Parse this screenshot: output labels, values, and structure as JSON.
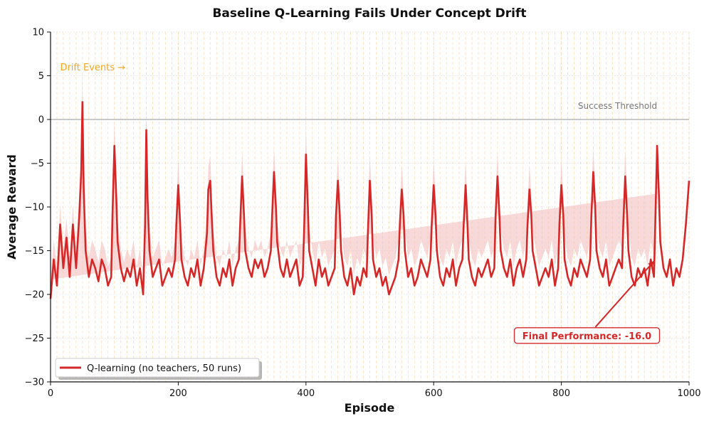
{
  "chart_data": {
    "type": "line",
    "title": "Baseline Q-Learning Fails Under Concept Drift",
    "xlabel": "Episode",
    "ylabel": "Average Reward",
    "xlim": [
      0,
      1000
    ],
    "ylim": [
      -30,
      10
    ],
    "xticks": [
      0,
      200,
      400,
      600,
      800,
      1000
    ],
    "yticks": [
      -30,
      -25,
      -20,
      -15,
      -10,
      -5,
      0,
      5,
      10
    ],
    "grid": true,
    "legend_placement": "bottom-left",
    "series": [
      {
        "name": "Q-learning (no teachers, 50 runs)",
        "color": "#d62728",
        "band_color": "#f3b9b9",
        "x": [
          0,
          5,
          10,
          15,
          20,
          25,
          30,
          35,
          40,
          45,
          48,
          50,
          52,
          55,
          60,
          65,
          70,
          75,
          80,
          85,
          90,
          95,
          97,
          100,
          103,
          105,
          110,
          115,
          120,
          125,
          130,
          135,
          140,
          145,
          148,
          150,
          152,
          155,
          160,
          165,
          170,
          175,
          180,
          185,
          190,
          195,
          197,
          200,
          203,
          205,
          210,
          215,
          220,
          225,
          230,
          235,
          240,
          245,
          247,
          250,
          253,
          255,
          260,
          265,
          270,
          275,
          280,
          285,
          290,
          295,
          297,
          300,
          303,
          305,
          310,
          315,
          320,
          325,
          330,
          335,
          340,
          345,
          347,
          350,
          353,
          355,
          360,
          365,
          370,
          375,
          380,
          385,
          390,
          395,
          397,
          400,
          403,
          405,
          410,
          415,
          420,
          425,
          430,
          435,
          440,
          445,
          447,
          450,
          453,
          455,
          460,
          465,
          470,
          475,
          480,
          485,
          490,
          495,
          497,
          500,
          503,
          505,
          510,
          515,
          520,
          525,
          530,
          535,
          540,
          545,
          547,
          550,
          553,
          555,
          560,
          565,
          570,
          575,
          580,
          585,
          590,
          595,
          597,
          600,
          603,
          605,
          610,
          615,
          620,
          625,
          630,
          635,
          640,
          645,
          647,
          650,
          653,
          655,
          660,
          665,
          670,
          675,
          680,
          685,
          690,
          695,
          697,
          700,
          703,
          705,
          710,
          715,
          720,
          725,
          730,
          735,
          740,
          745,
          747,
          750,
          753,
          755,
          760,
          765,
          770,
          775,
          780,
          785,
          790,
          795,
          797,
          800,
          803,
          805,
          810,
          815,
          820,
          825,
          830,
          835,
          840,
          845,
          847,
          850,
          853,
          855,
          860,
          865,
          870,
          875,
          880,
          885,
          890,
          895,
          897,
          900,
          903,
          905,
          910,
          915,
          920,
          925,
          930,
          935,
          940,
          945,
          947,
          950,
          953,
          955,
          960,
          965,
          970,
          975,
          980,
          985,
          990,
          995,
          1000
        ],
        "values": [
          -20.5,
          -16,
          -19,
          -12,
          -17,
          -13.5,
          -18,
          -12,
          -17,
          -11,
          -6,
          2,
          -8,
          -15,
          -18,
          -16,
          -17,
          -18.5,
          -16,
          -17,
          -19,
          -18,
          -11,
          -3,
          -9,
          -14,
          -17,
          -18.5,
          -17,
          -18,
          -16,
          -19,
          -17,
          -20,
          -12,
          -1.2,
          -9,
          -15,
          -18,
          -17,
          -16,
          -19,
          -18,
          -17,
          -18,
          -16,
          -12,
          -7.5,
          -12,
          -16,
          -18,
          -19,
          -17,
          -18,
          -16,
          -19,
          -17,
          -13,
          -8,
          -7,
          -12,
          -15,
          -18,
          -19,
          -17,
          -18,
          -16,
          -19,
          -17,
          -16,
          -12,
          -6.5,
          -11,
          -15,
          -17,
          -18,
          -16,
          -17,
          -16,
          -18,
          -17,
          -15,
          -11,
          -6,
          -10,
          -14,
          -17,
          -18,
          -16,
          -18,
          -17,
          -16,
          -19,
          -18,
          -13,
          -4,
          -10,
          -15,
          -17,
          -19,
          -16,
          -18,
          -17,
          -19,
          -18,
          -17,
          -11,
          -7,
          -11,
          -15,
          -18,
          -19,
          -17,
          -20,
          -18,
          -19,
          -17,
          -18,
          -13,
          -7,
          -11,
          -16,
          -18,
          -17,
          -19,
          -18,
          -20,
          -19,
          -18,
          -16,
          -12,
          -8,
          -11,
          -15,
          -18,
          -17,
          -19,
          -18,
          -16,
          -17,
          -18,
          -16,
          -12,
          -7.5,
          -11,
          -15,
          -18,
          -19,
          -17,
          -18,
          -16,
          -19,
          -17,
          -16,
          -12,
          -7.5,
          -12,
          -16,
          -18,
          -19,
          -17,
          -18,
          -17,
          -16,
          -18,
          -17,
          -11,
          -6.5,
          -11,
          -15,
          -17,
          -18,
          -16,
          -19,
          -17,
          -16,
          -18,
          -16,
          -12,
          -8,
          -11,
          -15,
          -17,
          -19,
          -18,
          -17,
          -18,
          -16,
          -19,
          -17,
          -12,
          -7.5,
          -11,
          -16,
          -18,
          -19,
          -17,
          -18,
          -16,
          -17,
          -18,
          -16,
          -11,
          -6,
          -10,
          -15,
          -17,
          -18,
          -16,
          -19,
          -18,
          -17,
          -16,
          -17,
          -12,
          -6.5,
          -11,
          -15,
          -18,
          -19,
          -17,
          -18,
          -17,
          -19,
          -16,
          -18,
          -12,
          -3,
          -9,
          -14,
          -17,
          -18,
          -16,
          -19,
          -17,
          -18,
          -16,
          -12,
          -7
        ],
        "band": [
          2.2,
          2.2,
          2.2,
          2.2,
          2.2,
          2.2,
          2.2,
          2.2,
          2.2,
          2.8,
          3,
          3,
          3,
          2.4,
          2.2,
          2.2,
          2.2,
          2.2,
          2.2,
          2.2,
          2.2,
          2.2,
          2.6,
          2.8,
          2.6,
          2.4,
          2.2,
          2.2,
          2.2,
          2.2,
          2.2,
          2.2,
          2.2,
          2.2,
          2.6,
          3,
          2.6,
          2.4,
          2.2,
          2.2,
          2.2,
          2.2,
          2.2,
          2.2,
          2.2,
          2.2,
          2.6,
          2.8,
          2.6,
          2.4,
          2.2,
          2.2,
          2.2,
          2.2,
          2.2,
          2.2,
          2.2,
          2.2,
          2.6,
          2.8,
          2.6,
          2.4,
          2.2,
          2.2,
          2.2,
          2.2,
          2.2,
          2.2,
          2.2,
          2.2,
          2.6,
          2.8,
          2.6,
          2.4,
          2.2,
          2.2,
          2.2,
          2.2,
          2.2,
          2.2,
          2.2,
          2.2,
          2.6,
          2.8,
          2.6,
          2.4,
          2.2,
          2.2,
          2.2,
          2.2,
          2.2,
          2.2,
          2.2,
          2.2,
          2.6,
          2.8,
          2.6,
          2.4,
          2.2,
          2.2,
          2.2,
          2.2,
          2.2,
          2.2,
          2.2,
          2.2,
          2.6,
          2.8,
          2.6,
          2.4,
          2.2,
          2.2,
          2.2,
          2.2,
          2.2,
          2.2,
          2.2,
          2.2,
          2.6,
          2.8,
          2.6,
          2.4,
          2.2,
          2.2,
          2.2,
          2.2,
          2.2,
          2.2,
          2.2,
          2.2,
          2.6,
          2.8,
          2.6,
          2.4,
          2.2,
          2.2,
          2.2,
          2.2,
          2.2,
          2.2,
          2.2,
          2.2,
          2.6,
          2.8,
          2.6,
          2.4,
          2.2,
          2.2,
          2.2,
          2.2,
          2.2,
          2.2,
          2.2,
          2.2,
          2.6,
          2.8,
          2.6,
          2.4,
          2.2,
          2.2,
          2.2,
          2.2,
          2.2,
          2.2,
          2.2,
          2.2,
          2.6,
          2.8,
          2.6,
          2.4,
          2.2,
          2.2,
          2.2,
          2.2,
          2.2,
          2.2,
          2.2,
          2.2,
          2.6,
          2.8,
          2.6,
          2.4,
          2.2,
          2.2,
          2.2,
          2.2,
          2.2,
          2.2,
          2.2,
          2.2,
          2.6,
          2.8,
          2.6,
          2.4,
          2.2,
          2.2,
          2.2,
          2.2,
          2.2,
          2.2,
          2.2,
          2.2,
          2.6,
          2.8,
          2.6,
          2.4,
          2.2,
          2.2,
          2.2,
          2.2,
          2.2,
          2.2,
          2.2,
          2.2,
          2.6,
          3,
          2.6,
          2.4,
          2.2,
          2.2,
          2.2,
          2.2,
          2.2,
          2.2,
          2.2,
          2.4,
          3.5
        ]
      }
    ],
    "drift_events_label": "Drift Events →",
    "drift_color": "#f5a623",
    "drift_interval": 10,
    "threshold": {
      "value": 0,
      "label": "Success Threshold",
      "color": "#aaaaaa"
    },
    "annotation": {
      "text": "Final Performance: -16.0",
      "x": 950,
      "y": -16,
      "text_x": 840,
      "text_y": -24.7,
      "color": "#d62728"
    }
  }
}
